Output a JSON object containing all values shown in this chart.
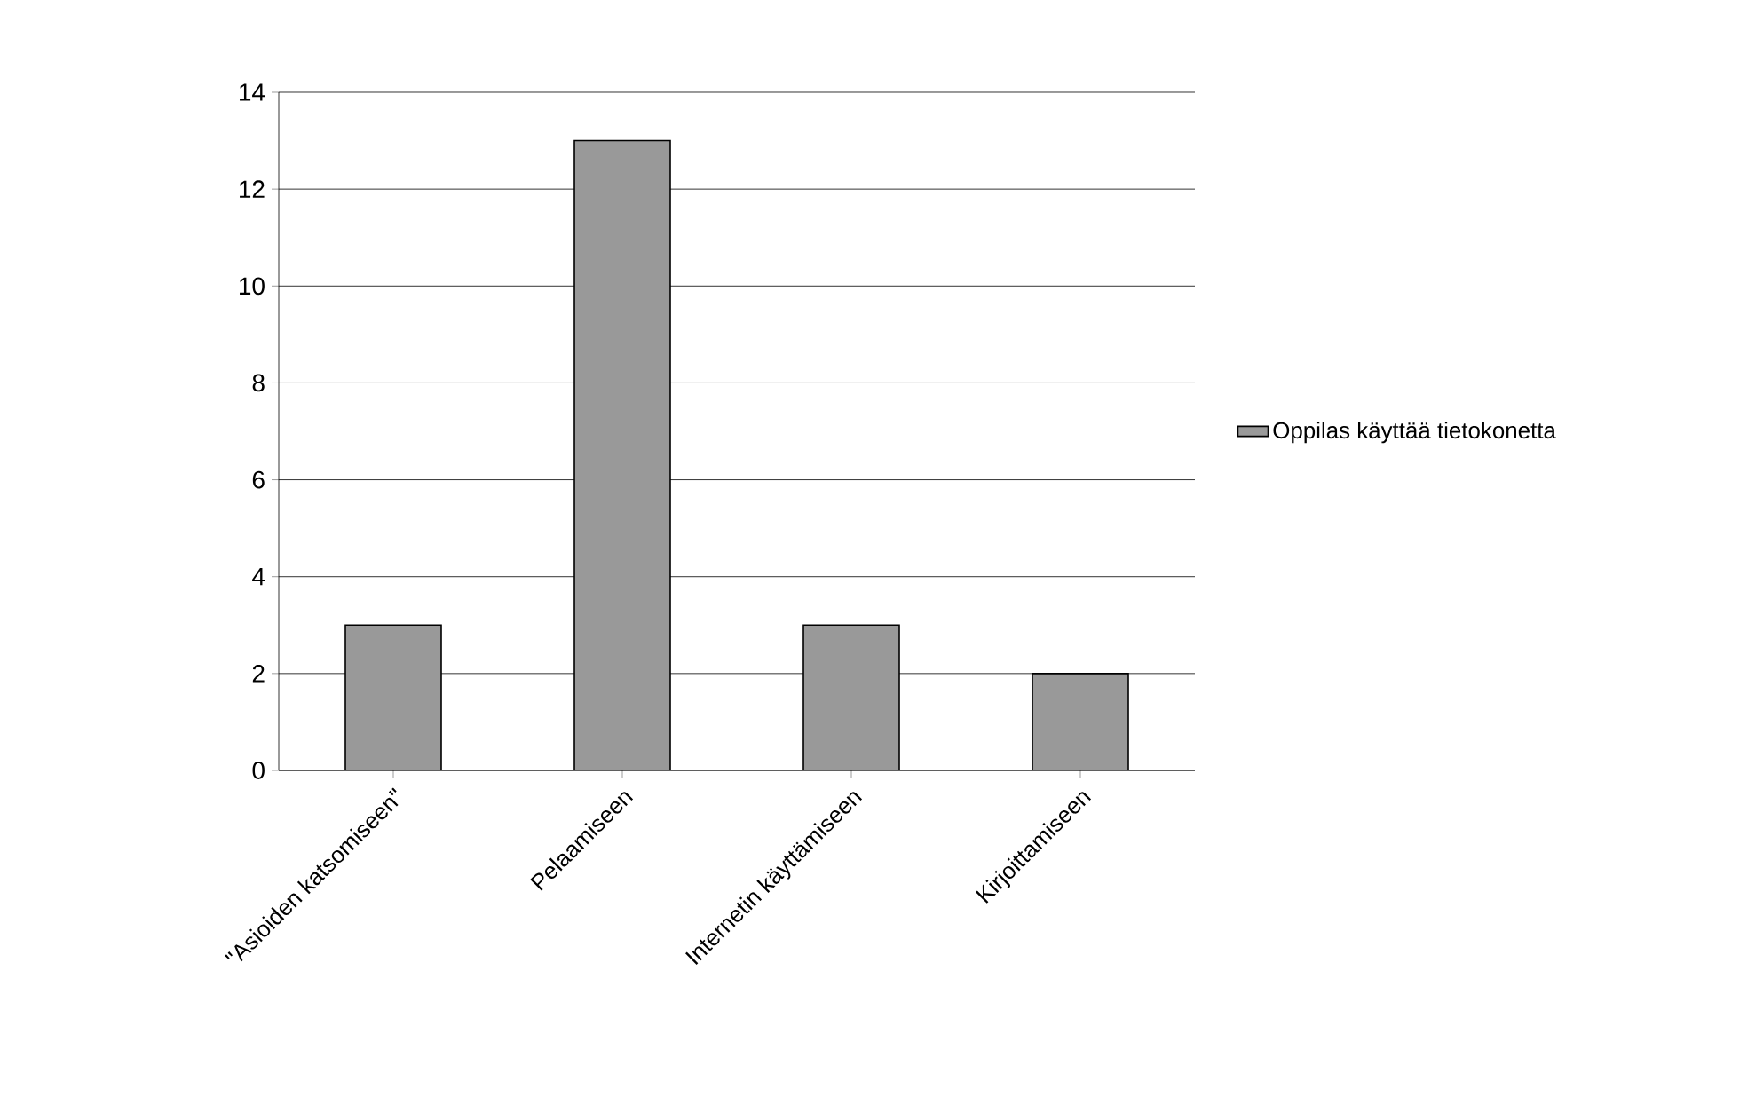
{
  "chart_data": {
    "type": "bar",
    "categories": [
      "\"Asioiden katsomiseen\"",
      "Pelaamiseen",
      "Internetin käyttämiseen",
      "Kirjoittamiseen"
    ],
    "series": [
      {
        "name": "Oppilas käyttää tietokonetta",
        "color": "#999999",
        "values": [
          3,
          13,
          3,
          2
        ]
      }
    ],
    "ylim": [
      0,
      14
    ],
    "yticks": [
      0,
      2,
      4,
      6,
      8,
      10,
      12,
      14
    ],
    "grid": "y",
    "legend": "right"
  }
}
